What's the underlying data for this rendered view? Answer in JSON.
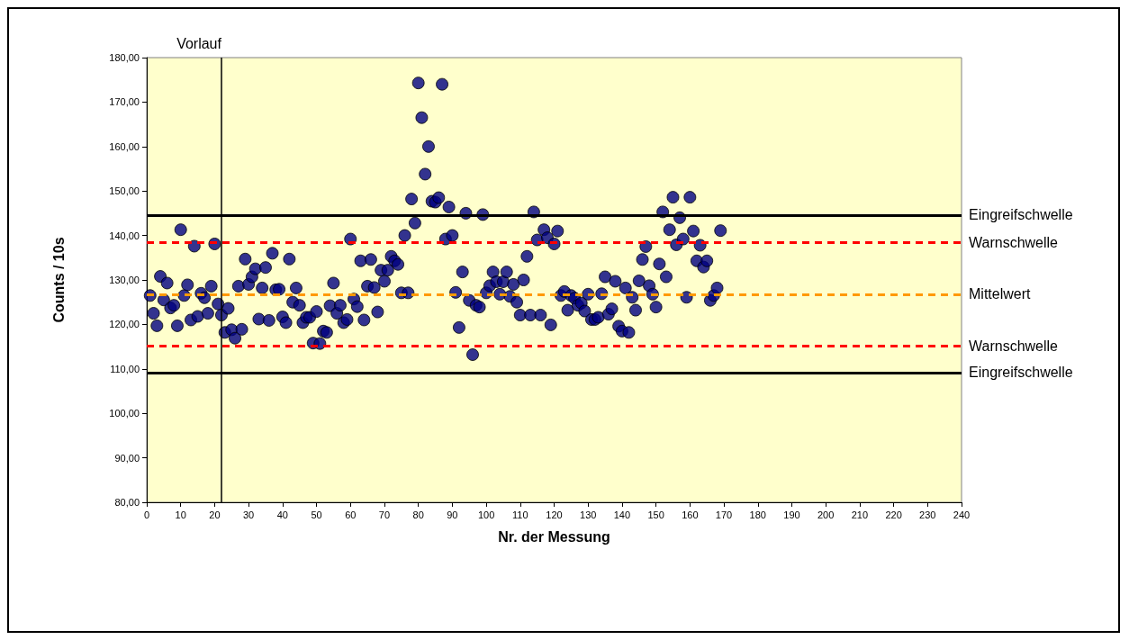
{
  "chart_data": {
    "type": "scatter",
    "xlabel": "Nr. der Messung",
    "ylabel": "Counts / 10s",
    "x": [
      1,
      2,
      3,
      4,
      5,
      6,
      7,
      8,
      9,
      10,
      11,
      12,
      13,
      14,
      15,
      16,
      17,
      18,
      19,
      20,
      21,
      22,
      23,
      24,
      25,
      26,
      27,
      28,
      29,
      30,
      31,
      32,
      33,
      34,
      35,
      36,
      37,
      38,
      39,
      40,
      41,
      42,
      43,
      44,
      45,
      46,
      47,
      48,
      49,
      50,
      51,
      52,
      53,
      54,
      55,
      56,
      57,
      58,
      59,
      60,
      61,
      62,
      63,
      64,
      65,
      66,
      67,
      68,
      69,
      70,
      71,
      72,
      73,
      74,
      75,
      76,
      77,
      78,
      79,
      80,
      81,
      82,
      83,
      84,
      85,
      86,
      87,
      88,
      89,
      90,
      91,
      92,
      93,
      94,
      95,
      96,
      97,
      98,
      99,
      100,
      101,
      102,
      103,
      104,
      105,
      106,
      107,
      108,
      109,
      110,
      111,
      112,
      113,
      114,
      115,
      116,
      117,
      118,
      119,
      120,
      121,
      122,
      123,
      124,
      125,
      126,
      127,
      128,
      129,
      130,
      131,
      132,
      133,
      134,
      135,
      136,
      137,
      138,
      139,
      140,
      141,
      142,
      143,
      144,
      145,
      146,
      147,
      148,
      149,
      150,
      151,
      152,
      153,
      154,
      155,
      156,
      157,
      158,
      159,
      160,
      161,
      162,
      163,
      164,
      165,
      166,
      167,
      168,
      169
    ],
    "series": [
      {
        "color": "#000080",
        "values": [
          126.5,
          122.5,
          119.7,
          130.8,
          125.5,
          129.3,
          123.7,
          124.3,
          119.7,
          141.3,
          126.5,
          128.9,
          121,
          137.6,
          121.8,
          127,
          126,
          122.5,
          128.6,
          138.1,
          124.6,
          122.1,
          118.2,
          123.6,
          118.8,
          116.9,
          128.6,
          118.9,
          134.7,
          129,
          130.7,
          132.5,
          121.2,
          128.2,
          132.8,
          120.9,
          136,
          127.8,
          127.9,
          121.7,
          120.4,
          134.7,
          125,
          128.2,
          124.3,
          120.4,
          121.6,
          121.6,
          115.8,
          122.9,
          115.7,
          118.5,
          118.2,
          124.2,
          129.3,
          122.5,
          124.3,
          120.4,
          121.1,
          139.2,
          125.7,
          124,
          134.3,
          121,
          128.6,
          134.6,
          128.3,
          122.8,
          132.2,
          129.7,
          132.2,
          135.3,
          134.3,
          133.5,
          127.1,
          140,
          127.1,
          148.2,
          142.8,
          174.3,
          166.5,
          153.8,
          160,
          147.7,
          147.5,
          148.5,
          174,
          139.2,
          146.4,
          140,
          127.2,
          119.3,
          131.8,
          145,
          125.4,
          113.2,
          124.3,
          123.9,
          144.7,
          127.1,
          128.7,
          131.8,
          129.6,
          126.8,
          129.6,
          131.8,
          126.3,
          129,
          125,
          122.1,
          130,
          135.3,
          122.1,
          145.3,
          139,
          122.1,
          141.3,
          139.5,
          119.9,
          138.1,
          141,
          126.5,
          127.4,
          123.2,
          126.5,
          125.9,
          124.3,
          124.8,
          123,
          126.8,
          121.1,
          121.1,
          121.6,
          126.9,
          130.7,
          122.3,
          123.5,
          129.7,
          119.6,
          118.5,
          128.2,
          118.2,
          126.1,
          123.2,
          129.8,
          134.6,
          137.5,
          128.7,
          126.8,
          123.9,
          133.6,
          145.3,
          130.7,
          141.3,
          148.6,
          137.9,
          144,
          139.2,
          126.1,
          148.6,
          141,
          134.3,
          137.8,
          132.9,
          134.3,
          125.4,
          126.5,
          128.2,
          141.1
        ]
      }
    ],
    "xlim": [
      0,
      240
    ],
    "xticks": [
      0,
      10,
      20,
      30,
      40,
      50,
      60,
      70,
      80,
      90,
      100,
      110,
      120,
      130,
      140,
      150,
      160,
      170,
      180,
      190,
      200,
      210,
      220,
      230,
      240
    ],
    "ylim": [
      80,
      180
    ],
    "yticks": [
      {
        "value": 80,
        "label": "80,00"
      },
      {
        "value": 90,
        "label": "90,00"
      },
      {
        "value": 100,
        "label": "100,00"
      },
      {
        "value": 110,
        "label": "110,00"
      },
      {
        "value": 120,
        "label": "120,00"
      },
      {
        "value": 130,
        "label": "130,00"
      },
      {
        "value": 140,
        "label": "140,00"
      },
      {
        "value": 150,
        "label": "150,00"
      },
      {
        "value": 160,
        "label": "160,00"
      },
      {
        "value": 170,
        "label": "170,00"
      },
      {
        "value": 180,
        "label": "180,00"
      }
    ],
    "marker": "circle",
    "ref_lines": [
      {
        "axis": "y",
        "value": 144.6,
        "label": "Eingreifschwelle",
        "color": "#000000",
        "line_style": "solid"
      },
      {
        "axis": "y",
        "value": 138.4,
        "label": "Warnschwelle",
        "color": "#ff0000",
        "line_style": "dashed"
      },
      {
        "axis": "y",
        "value": 126.8,
        "label": "Mittelwert",
        "color": "#ff9900",
        "line_style": "dashed"
      },
      {
        "axis": "y",
        "value": 115.2,
        "label": "Warnschwelle",
        "color": "#ff0000",
        "line_style": "dashed"
      },
      {
        "axis": "y",
        "value": 109.2,
        "label": "Eingreifschwelle",
        "color": "#000000",
        "line_style": "solid"
      },
      {
        "axis": "x",
        "value": 22,
        "label": "Vorlauf",
        "color": "#000000",
        "line_style": "solid"
      }
    ]
  }
}
